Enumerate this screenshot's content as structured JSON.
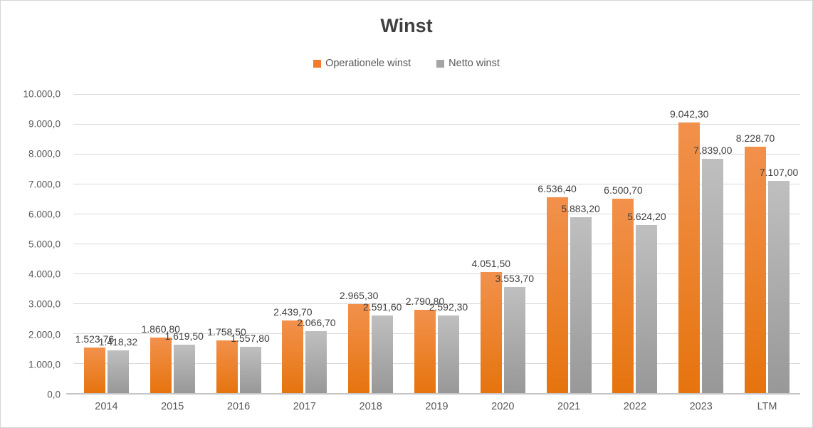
{
  "chart_data": {
    "type": "bar",
    "title": "Winst",
    "categories": [
      "2014",
      "2015",
      "2016",
      "2017",
      "2018",
      "2019",
      "2020",
      "2021",
      "2022",
      "2023",
      "LTM"
    ],
    "series": [
      {
        "name": "Operationele winst",
        "color": "#ED7D31",
        "values": [
          1523.76,
          1860.8,
          1758.5,
          2439.7,
          2965.3,
          2790.8,
          4051.5,
          6536.4,
          6500.7,
          9042.3,
          8228.7
        ],
        "labels": [
          "1.523,76",
          "1.860,80",
          "1.758,50",
          "2.439,70",
          "2.965,30",
          "2.790,80",
          "4.051,50",
          "6.536,40",
          "6.500,70",
          "9.042,30",
          "8.228,70"
        ]
      },
      {
        "name": "Netto winst",
        "color": "#A5A5A5",
        "values": [
          1418.32,
          1619.5,
          1557.8,
          2066.7,
          2591.6,
          2592.3,
          3553.7,
          5883.2,
          5624.2,
          7839.0,
          7107.0
        ],
        "labels": [
          "1.418,32",
          "1.619,50",
          "1.557,80",
          "2.066,70",
          "2.591,60",
          "2.592,30",
          "3.553,70",
          "5.883,20",
          "5.624,20",
          "7.839,00",
          "7.107,00"
        ]
      }
    ],
    "y_axis": {
      "min": 0,
      "max": 10000,
      "step": 1000,
      "tick_labels": [
        "10.000,0",
        "9.000,0",
        "8.000,0",
        "7.000,0",
        "6.000,0",
        "5.000,0",
        "4.000,0",
        "3.000,0",
        "2.000,0",
        "1.000,0",
        "0,0"
      ]
    },
    "grid": true,
    "legend_position": "top",
    "colors": {
      "gridline": "#D9D9D9",
      "axis_line": "#C6C6C6",
      "label_text": "#404040",
      "tick_text": "#595959"
    }
  }
}
